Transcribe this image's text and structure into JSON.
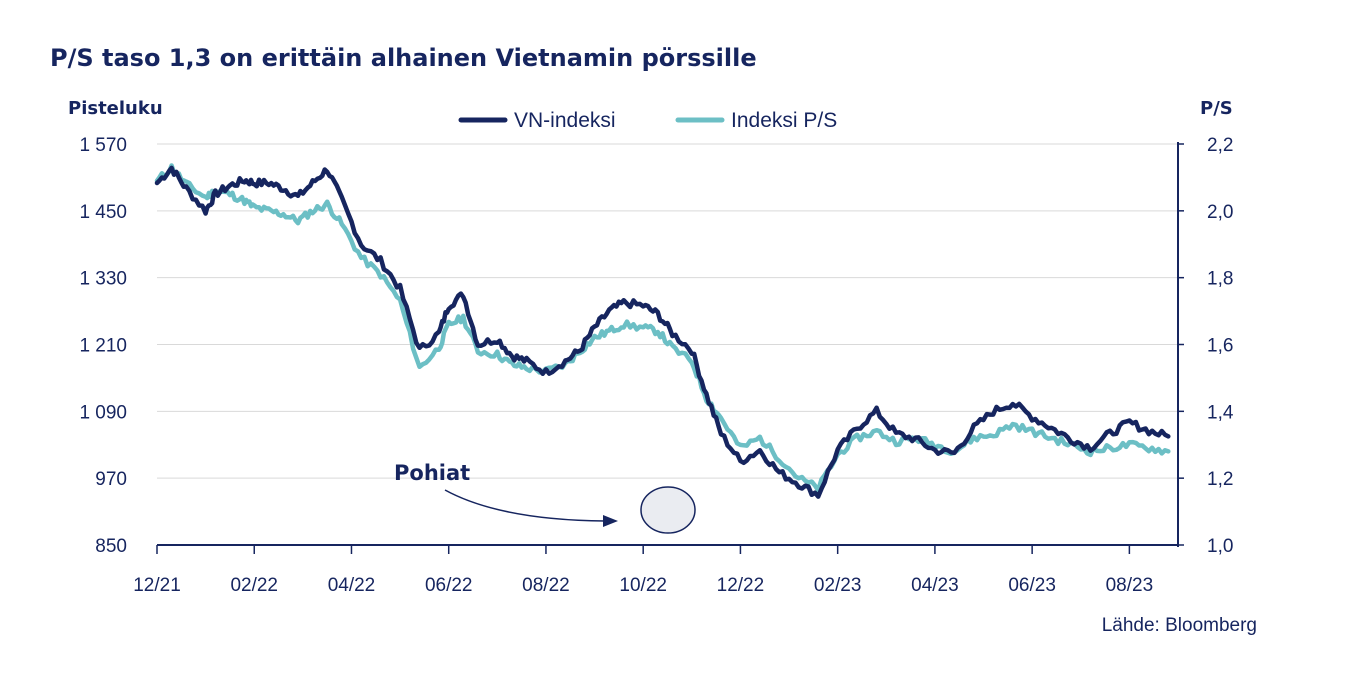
{
  "chart_data": {
    "type": "line",
    "title": "P/S taso 1,3 on erittäin alhainen Vietnamin pörssille",
    "ylabel_left": "Pisteluku",
    "ylabel_right": "P/S",
    "ylim_left": [
      850,
      1570
    ],
    "ylim_right": [
      1.0,
      2.2
    ],
    "y_ticks_left": [
      "1 570",
      "1 450",
      "1 330",
      "1 210",
      "1 090",
      "970",
      "850"
    ],
    "y_ticks_right": [
      "2,2",
      "2,0",
      "1,8",
      "1,6",
      "1,4",
      "1,2",
      "1,0"
    ],
    "x_ticks": [
      "12/21",
      "02/22",
      "04/22",
      "06/22",
      "08/22",
      "10/22",
      "12/22",
      "02/23",
      "04/23",
      "06/23",
      "08/23"
    ],
    "grid": true,
    "legend_position": "top-center",
    "series": [
      {
        "name": "VN-indeksi",
        "axis": "left",
        "color": "#16255f",
        "x": [
          0,
          0.3,
          0.6,
          1.0,
          1.2,
          1.5,
          1.8,
          2.0,
          2.3,
          2.6,
          2.9,
          3.2,
          3.5,
          3.8,
          4.2,
          4.6,
          5.0,
          5.4,
          5.8,
          6.0,
          6.3,
          6.6,
          7.0,
          7.3,
          7.6,
          8.0,
          8.4,
          8.7,
          9.0,
          9.3,
          9.6,
          10.0,
          10.3,
          10.6,
          11.0,
          11.3,
          11.6,
          12.0,
          12.4,
          12.8,
          13.2,
          13.6,
          14.0,
          14.4,
          14.8,
          15.2,
          15.6,
          16.0,
          16.4,
          16.8,
          17.2,
          17.6,
          18.0,
          18.4,
          18.8,
          19.2,
          19.6,
          20.0,
          20.4,
          20.8
        ],
        "values": [
          1500,
          1527,
          1490,
          1450,
          1480,
          1495,
          1505,
          1500,
          1500,
          1490,
          1475,
          1500,
          1525,
          1470,
          1390,
          1360,
          1310,
          1200,
          1230,
          1280,
          1300,
          1210,
          1220,
          1190,
          1180,
          1160,
          1180,
          1200,
          1240,
          1270,
          1285,
          1280,
          1265,
          1230,
          1200,
          1120,
          1050,
          1000,
          1020,
          980,
          960,
          940,
          1020,
          1060,
          1090,
          1050,
          1040,
          1020,
          1015,
          1060,
          1090,
          1105,
          1080,
          1060,
          1040,
          1025,
          1050,
          1070,
          1055,
          1045
        ],
        "_note": "x in months since 12/21"
      },
      {
        "name": "Indeksi P/S",
        "axis": "right",
        "color": "#6cbfc5",
        "x": [
          0,
          0.3,
          0.6,
          1.0,
          1.2,
          1.5,
          1.8,
          2.0,
          2.3,
          2.6,
          2.9,
          3.2,
          3.5,
          3.8,
          4.2,
          4.6,
          5.0,
          5.4,
          5.8,
          6.0,
          6.3,
          6.6,
          7.0,
          7.3,
          7.6,
          8.0,
          8.4,
          8.7,
          9.0,
          9.3,
          9.6,
          10.0,
          10.3,
          10.6,
          11.0,
          11.3,
          11.6,
          12.0,
          12.4,
          12.8,
          13.2,
          13.6,
          14.0,
          14.4,
          14.8,
          15.2,
          15.6,
          16.0,
          16.4,
          16.8,
          17.2,
          17.6,
          18.0,
          18.4,
          18.8,
          19.2,
          19.6,
          20.0,
          20.4,
          20.8
        ],
        "values": [
          2.09,
          2.13,
          2.08,
          2.04,
          2.06,
          2.05,
          2.03,
          2.01,
          2.0,
          1.99,
          1.97,
          2.0,
          2.02,
          1.96,
          1.86,
          1.81,
          1.73,
          1.53,
          1.59,
          1.66,
          1.68,
          1.58,
          1.57,
          1.54,
          1.53,
          1.52,
          1.54,
          1.58,
          1.62,
          1.64,
          1.66,
          1.65,
          1.64,
          1.59,
          1.55,
          1.44,
          1.38,
          1.29,
          1.32,
          1.26,
          1.2,
          1.17,
          1.27,
          1.32,
          1.34,
          1.31,
          1.32,
          1.3,
          1.28,
          1.32,
          1.33,
          1.36,
          1.34,
          1.32,
          1.3,
          1.28,
          1.29,
          1.3,
          1.29,
          1.28
        ],
        "_note": "x in months since 12/21"
      }
    ],
    "annotations": [
      {
        "text": "Pohiat"
      }
    ],
    "source": "Lähde: Bloomberg"
  }
}
